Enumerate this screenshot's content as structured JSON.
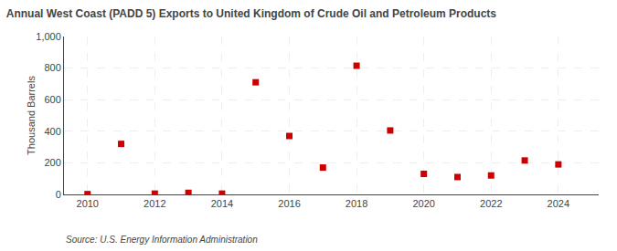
{
  "chart_data": {
    "type": "scatter",
    "title": "Annual West Coast (PADD 5) Exports to United Kingdom of Crude Oil and Petroleum Products",
    "ylabel": "Thousand Barrels",
    "annotations": [
      "Source: U.S. Energy Information Administration"
    ],
    "x": [
      2010,
      2011,
      2012,
      2013,
      2014,
      2015,
      2016,
      2017,
      2018,
      2019,
      2020,
      2021,
      2022,
      2023,
      2024
    ],
    "values": [
      2,
      320,
      5,
      10,
      5,
      710,
      370,
      170,
      815,
      405,
      130,
      110,
      120,
      215,
      190
    ],
    "color": "#cc0000",
    "marker": "square",
    "xlim": [
      2009.3,
      2025.2
    ],
    "xticks": [
      2010,
      2012,
      2014,
      2016,
      2018,
      2020,
      2022,
      2024
    ],
    "ylim": [
      0,
      1000
    ],
    "yticks": [
      0,
      200,
      400,
      600,
      800,
      {
        "value": 1000,
        "label": "1,000"
      }
    ],
    "grid": true
  }
}
